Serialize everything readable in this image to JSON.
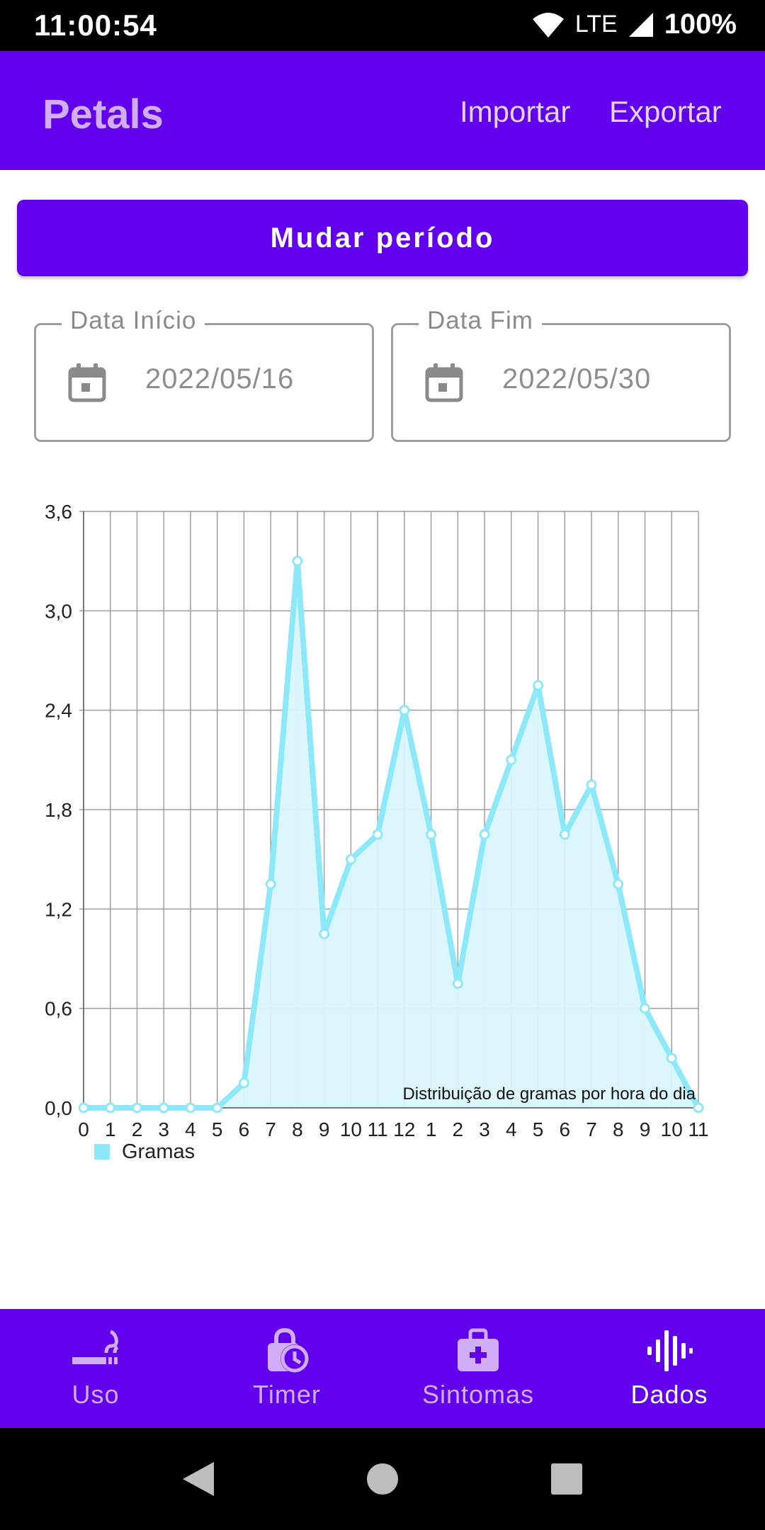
{
  "status_bar": {
    "time": "11:00:54",
    "network": "LTE",
    "battery": "100%"
  },
  "app_bar": {
    "title": "Petals",
    "import_label": "Importar",
    "export_label": "Exportar"
  },
  "period_button": {
    "label": "Mudar período"
  },
  "date_start": {
    "label": "Data Início",
    "value": "2022/05/16",
    "icon": "calendar-icon"
  },
  "date_end": {
    "label": "Data Fim",
    "value": "2022/05/30",
    "icon": "calendar-icon"
  },
  "colors": {
    "primary": "#6200EE",
    "accent_light": "#CFAEF7",
    "series": "#8DE8FA",
    "series_fill": "#D9F7FD"
  },
  "chart_data": {
    "type": "area",
    "x": [
      "0",
      "1",
      "2",
      "3",
      "4",
      "5",
      "6",
      "7",
      "8",
      "9",
      "10",
      "11",
      "12",
      "1",
      "2",
      "3",
      "4",
      "5",
      "6",
      "7",
      "8",
      "9",
      "10",
      "11"
    ],
    "series": [
      {
        "name": "Gramas",
        "values": [
          0,
          0,
          0,
          0,
          0,
          0,
          0.15,
          1.35,
          3.3,
          1.05,
          1.5,
          1.65,
          2.4,
          1.65,
          0.75,
          1.65,
          2.1,
          2.55,
          1.65,
          1.95,
          1.35,
          0.6,
          0.3,
          0
        ]
      }
    ],
    "yticks": [
      "0,0",
      "0,6",
      "1,2",
      "1,8",
      "2,4",
      "3,0",
      "3,6"
    ],
    "ylim": [
      0,
      3.6
    ],
    "description": "Distribuição de gramas por hora do dia",
    "grid": true,
    "legend": "bottom-left"
  },
  "bottom_nav": [
    {
      "label": "Uso",
      "icon": "smoking-icon",
      "active": false
    },
    {
      "label": "Timer",
      "icon": "timer-lock-icon",
      "active": false
    },
    {
      "label": "Sintomas",
      "icon": "medical-bag-icon",
      "active": false
    },
    {
      "label": "Dados",
      "icon": "waveform-icon",
      "active": true
    }
  ]
}
